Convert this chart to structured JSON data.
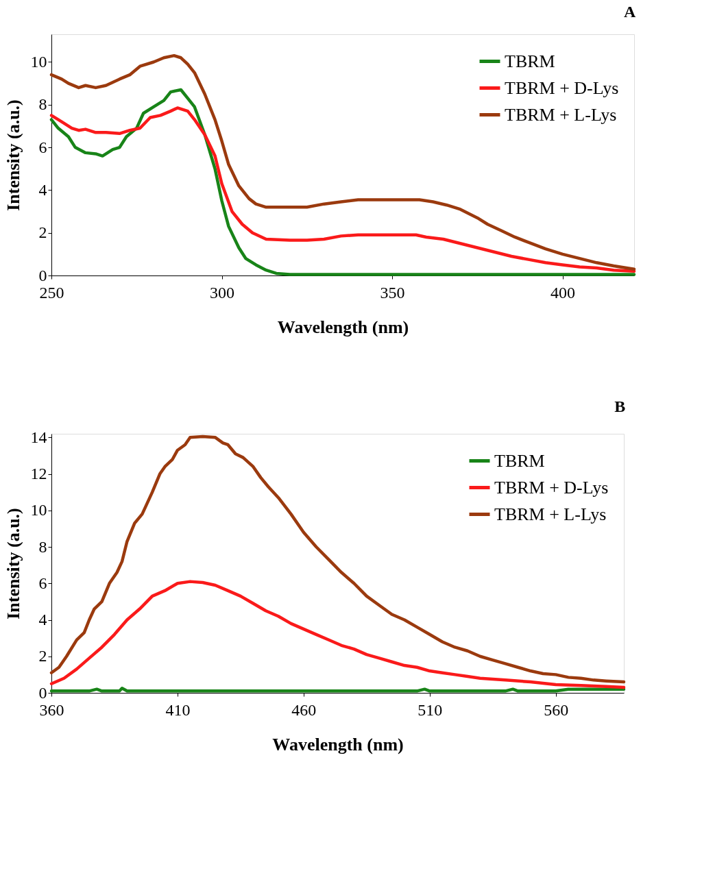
{
  "chart_data": [
    {
      "type": "line",
      "xlabel": "Wavelength (nm)",
      "ylabel": "Intensity (a.u.)",
      "annotations": [
        "A"
      ],
      "xlim": [
        250,
        421
      ],
      "ylim": [
        0,
        11.3
      ],
      "xticks": [
        250,
        300,
        350,
        400
      ],
      "yticks": [
        0,
        2,
        4,
        6,
        8,
        10
      ],
      "grid": false,
      "legend": "top right",
      "marker": "none",
      "line_style": "solid",
      "series": [
        {
          "name": "TBRM",
          "color": "#188418",
          "x": [
            250,
            252,
            255,
            257,
            260,
            263,
            265,
            268,
            270,
            272,
            275,
            277,
            280,
            283,
            285,
            288,
            290,
            292,
            295,
            298,
            300,
            302,
            305,
            307,
            310,
            313,
            316,
            320,
            330,
            350,
            421
          ],
          "values": [
            7.3,
            6.9,
            6.5,
            6.0,
            5.75,
            5.7,
            5.6,
            5.9,
            6.0,
            6.5,
            6.9,
            7.6,
            7.9,
            8.2,
            8.6,
            8.7,
            8.3,
            7.9,
            6.6,
            5.0,
            3.5,
            2.3,
            1.3,
            0.8,
            0.5,
            0.25,
            0.1,
            0.05,
            0.05,
            0.05,
            0.05
          ]
        },
        {
          "name": "TBRM + D-Lys",
          "color": "#fa1a1a",
          "x": [
            250,
            253,
            256,
            258,
            260,
            263,
            266,
            270,
            273,
            276,
            279,
            282,
            285,
            287,
            290,
            292,
            295,
            298,
            300,
            303,
            306,
            309,
            313,
            320,
            325,
            330,
            335,
            340,
            350,
            357,
            360,
            365,
            370,
            375,
            380,
            385,
            390,
            395,
            400,
            405,
            410,
            415,
            421
          ],
          "values": [
            7.5,
            7.2,
            6.9,
            6.8,
            6.85,
            6.7,
            6.7,
            6.65,
            6.8,
            6.9,
            7.4,
            7.5,
            7.7,
            7.85,
            7.7,
            7.3,
            6.6,
            5.6,
            4.3,
            3.0,
            2.4,
            2.0,
            1.7,
            1.65,
            1.65,
            1.7,
            1.85,
            1.9,
            1.9,
            1.9,
            1.8,
            1.7,
            1.5,
            1.3,
            1.1,
            0.9,
            0.75,
            0.6,
            0.5,
            0.4,
            0.35,
            0.25,
            0.2
          ]
        },
        {
          "name": "TBRM + L-Lys",
          "color": "#9b3a0e",
          "x": [
            250,
            253,
            255,
            258,
            260,
            263,
            266,
            270,
            273,
            276,
            280,
            283,
            286,
            288,
            290,
            292,
            295,
            298,
            300,
            302,
            305,
            308,
            310,
            313,
            320,
            325,
            330,
            335,
            340,
            350,
            358,
            362,
            366,
            370,
            375,
            378,
            382,
            386,
            390,
            395,
            400,
            405,
            410,
            415,
            421
          ],
          "values": [
            9.4,
            9.2,
            9.0,
            8.8,
            8.9,
            8.8,
            8.9,
            9.2,
            9.4,
            9.8,
            10.0,
            10.2,
            10.3,
            10.2,
            9.9,
            9.5,
            8.5,
            7.3,
            6.3,
            5.2,
            4.2,
            3.6,
            3.35,
            3.2,
            3.2,
            3.2,
            3.35,
            3.45,
            3.55,
            3.55,
            3.55,
            3.45,
            3.3,
            3.1,
            2.7,
            2.4,
            2.1,
            1.8,
            1.55,
            1.25,
            1.0,
            0.8,
            0.6,
            0.45,
            0.3
          ]
        }
      ]
    },
    {
      "type": "line",
      "xlabel": "Wavelength (nm)",
      "ylabel": "Intensity (a.u.)",
      "annotations": [
        "B"
      ],
      "xlim": [
        360,
        587
      ],
      "ylim": [
        0,
        14.2
      ],
      "xticks": [
        360,
        410,
        460,
        510,
        560
      ],
      "yticks": [
        0,
        2,
        4,
        6,
        8,
        10,
        12,
        14
      ],
      "grid": false,
      "legend": "top right",
      "marker": "none",
      "line_style": "solid",
      "series": [
        {
          "name": "TBRM",
          "color": "#188418",
          "x": [
            360,
            375,
            378,
            380,
            387,
            388,
            390,
            505,
            508,
            510,
            540,
            543,
            545,
            560,
            565,
            575,
            587
          ],
          "values": [
            0.1,
            0.1,
            0.2,
            0.1,
            0.1,
            0.25,
            0.1,
            0.1,
            0.2,
            0.1,
            0.1,
            0.2,
            0.1,
            0.1,
            0.2,
            0.2,
            0.2
          ]
        },
        {
          "name": "TBRM + D-Lys",
          "color": "#fa1a1a",
          "x": [
            360,
            365,
            370,
            375,
            380,
            385,
            390,
            395,
            400,
            405,
            410,
            415,
            420,
            425,
            430,
            435,
            440,
            445,
            450,
            455,
            460,
            465,
            470,
            475,
            480,
            485,
            490,
            495,
            500,
            505,
            510,
            515,
            520,
            525,
            530,
            540,
            550,
            560,
            570,
            580,
            587
          ],
          "values": [
            0.5,
            0.8,
            1.3,
            1.9,
            2.5,
            3.2,
            4.0,
            4.6,
            5.3,
            5.6,
            6.0,
            6.1,
            6.05,
            5.9,
            5.6,
            5.3,
            4.9,
            4.5,
            4.2,
            3.8,
            3.5,
            3.2,
            2.9,
            2.6,
            2.4,
            2.1,
            1.9,
            1.7,
            1.5,
            1.4,
            1.2,
            1.1,
            1.0,
            0.9,
            0.8,
            0.7,
            0.6,
            0.45,
            0.4,
            0.35,
            0.3
          ]
        },
        {
          "name": "TBRM + L-Lys",
          "color": "#9b3a0e",
          "x": [
            360,
            363,
            366,
            370,
            373,
            375,
            377,
            380,
            383,
            386,
            388,
            390,
            393,
            396,
            398,
            400,
            403,
            405,
            408,
            410,
            413,
            415,
            420,
            425,
            428,
            430,
            433,
            436,
            440,
            443,
            446,
            450,
            455,
            460,
            465,
            470,
            475,
            480,
            485,
            490,
            495,
            500,
            505,
            510,
            515,
            520,
            525,
            530,
            535,
            540,
            545,
            550,
            555,
            560,
            565,
            570,
            575,
            580,
            587
          ],
          "values": [
            1.1,
            1.4,
            2.0,
            2.9,
            3.3,
            4.0,
            4.6,
            5.0,
            6.0,
            6.6,
            7.2,
            8.3,
            9.3,
            9.8,
            10.4,
            11.0,
            12.0,
            12.4,
            12.8,
            13.3,
            13.6,
            14.0,
            14.05,
            14.0,
            13.7,
            13.6,
            13.1,
            12.9,
            12.4,
            11.8,
            11.3,
            10.7,
            9.8,
            8.8,
            8.0,
            7.3,
            6.6,
            6.0,
            5.3,
            4.8,
            4.3,
            4.0,
            3.6,
            3.2,
            2.8,
            2.5,
            2.3,
            2.0,
            1.8,
            1.6,
            1.4,
            1.2,
            1.05,
            1.0,
            0.85,
            0.8,
            0.7,
            0.65,
            0.6
          ]
        }
      ]
    }
  ]
}
